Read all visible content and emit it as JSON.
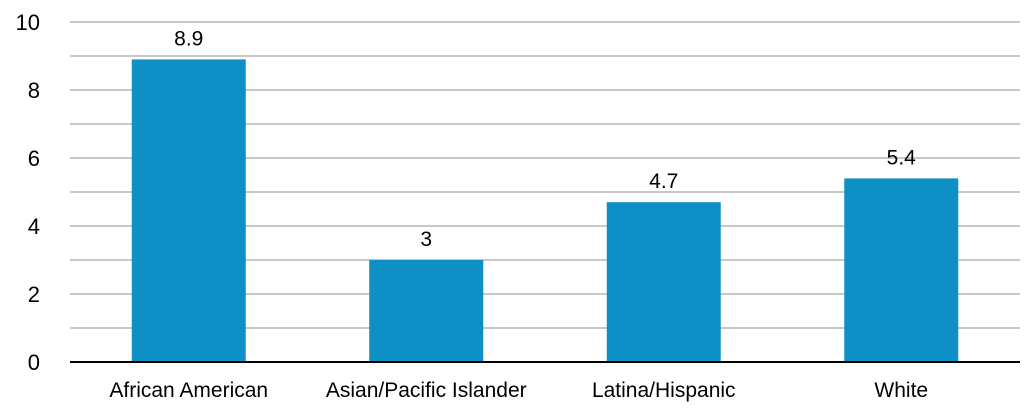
{
  "chart_data": {
    "type": "bar",
    "title": "",
    "xlabel": "",
    "ylabel": "",
    "categories": [
      "African American",
      "Asian/Pacific Islander",
      "Latina/Hispanic",
      "White"
    ],
    "values": [
      8.9,
      3,
      4.7,
      5.4
    ],
    "data_labels": [
      "8.9",
      "3",
      "4.7",
      "5.4"
    ],
    "ylim": [
      0,
      10
    ],
    "yticks": [
      0,
      2,
      4,
      6,
      8,
      10
    ],
    "grid": true,
    "legend": "none",
    "colors": {
      "bar": "#0E8FC5",
      "grid": "#A6A6A6",
      "axis": "#000000"
    }
  }
}
